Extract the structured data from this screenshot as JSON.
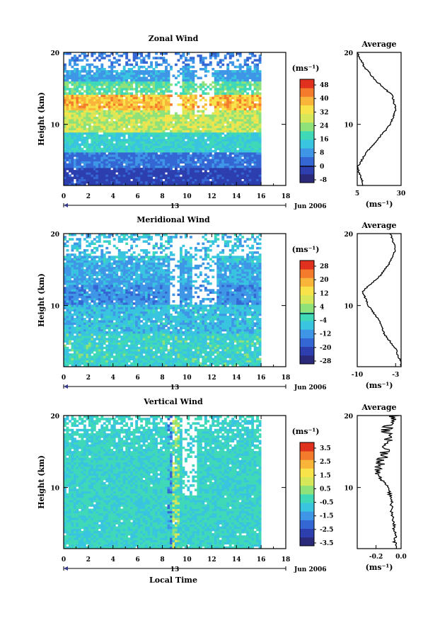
{
  "panels": [
    {
      "title": "Zonal Wind",
      "ylabel": "Height (km)",
      "yticks": [
        "20",
        "10"
      ],
      "xticks": [
        "0",
        "2",
        "4",
        "6",
        "8",
        "10",
        "12",
        "14",
        "16",
        "18"
      ],
      "date_tick": "13",
      "date_label": "Jun 2006",
      "colorbar_unit": "(ms⁻¹)",
      "colorbar_ticks": [
        "48",
        "40",
        "32",
        "24",
        "16",
        "8",
        "0",
        "-8"
      ],
      "avg_title": "Average",
      "avg_xticks": [
        "5",
        "30"
      ],
      "avg_xlabel": "(ms⁻¹)",
      "avg_yticks": [
        "20",
        "10"
      ]
    },
    {
      "title": "Meridional Wind",
      "ylabel": "Height (km)",
      "yticks": [
        "20",
        "10"
      ],
      "xticks": [
        "0",
        "2",
        "4",
        "6",
        "8",
        "10",
        "12",
        "14",
        "16",
        "18"
      ],
      "date_tick": "13",
      "date_label": "Jun 2006",
      "colorbar_unit": "(ms⁻¹)",
      "colorbar_ticks": [
        "28",
        "20",
        "12",
        "4",
        "-4",
        "-12",
        "-20",
        "-28"
      ],
      "avg_title": "Average",
      "avg_xticks": [
        "-10",
        "-3"
      ],
      "avg_xlabel": "(ms⁻¹)",
      "avg_yticks": [
        "20",
        "10"
      ]
    },
    {
      "title": "Vertical Wind",
      "ylabel": "Height (km)",
      "yticks": [
        "20",
        "10"
      ],
      "xticks": [
        "0",
        "2",
        "4",
        "6",
        "8",
        "10",
        "12",
        "14",
        "16",
        "18"
      ],
      "date_tick": "13",
      "date_label": "Jun 2006",
      "colorbar_unit": "(ms⁻¹)",
      "colorbar_ticks": [
        "3.5",
        "2.5",
        "1.5",
        "0.5",
        "-0.5",
        "-1.5",
        "-2.5",
        "-3.5"
      ],
      "avg_title": "Average",
      "avg_xticks": [
        "-0.2",
        "0.0"
      ],
      "avg_xlabel": "(ms⁻¹)",
      "avg_yticks": [
        "20",
        "10"
      ]
    }
  ],
  "xlabel": "Local Time",
  "colors": {
    "scale": [
      "#2b2a7a",
      "#2d3fae",
      "#3466d4",
      "#3f96e6",
      "#39c4e0",
      "#3fd9b8",
      "#8fe17a",
      "#d6e85a",
      "#f8e34a",
      "#f9b53a",
      "#f47b2c",
      "#e0311e"
    ]
  },
  "chart_data": [
    {
      "type": "heatmap",
      "title": "Zonal Wind",
      "xlabel": "",
      "ylabel": "Height (km)",
      "xlim": [
        0,
        18
      ],
      "ylim": [
        1.5,
        20
      ],
      "data_xlim": [
        0,
        16
      ],
      "gap_columns_hours": [
        8.5,
        9.1,
        11.2,
        11.6
      ],
      "levels": [
        -8,
        0,
        8,
        16,
        24,
        32,
        40,
        48
      ],
      "profile_heights_km": [
        2,
        4,
        6,
        8,
        10,
        12,
        14,
        16,
        18,
        20
      ],
      "profile_values": [
        8,
        5,
        10,
        17,
        24,
        27,
        25,
        16,
        9,
        5
      ],
      "avg_xlim": [
        5,
        30
      ]
    },
    {
      "type": "heatmap",
      "title": "Meridional Wind",
      "xlabel": "",
      "ylabel": "Height (km)",
      "xlim": [
        0,
        18
      ],
      "ylim": [
        1.5,
        20
      ],
      "data_xlim": [
        0,
        16
      ],
      "levels": [
        -28,
        -20,
        -12,
        -4,
        4,
        12,
        20,
        28
      ],
      "profile_heights_km": [
        2,
        4,
        6,
        8,
        10,
        12,
        14,
        16,
        18,
        20
      ],
      "profile_values": [
        -2,
        -3,
        -5,
        -6,
        -8,
        -9,
        -6,
        -4,
        -3,
        -4
      ],
      "avg_xlim": [
        -10,
        -2
      ]
    },
    {
      "type": "heatmap",
      "title": "Vertical Wind",
      "xlabel": "Local Time",
      "ylabel": "Height (km)",
      "xlim": [
        0,
        18
      ],
      "ylim": [
        1.5,
        20
      ],
      "data_xlim": [
        0,
        16
      ],
      "levels": [
        -3.5,
        -2.5,
        -1.5,
        -0.5,
        0.5,
        1.5,
        2.5,
        3.5
      ],
      "profile_heights_km": [
        2,
        4,
        6,
        8,
        10,
        12,
        14,
        16,
        18,
        20
      ],
      "profile_values": [
        -0.05,
        -0.05,
        -0.07,
        -0.08,
        -0.1,
        -0.2,
        -0.15,
        -0.1,
        -0.12,
        -0.05
      ],
      "avg_xlim": [
        -0.35,
        0.0
      ]
    }
  ]
}
